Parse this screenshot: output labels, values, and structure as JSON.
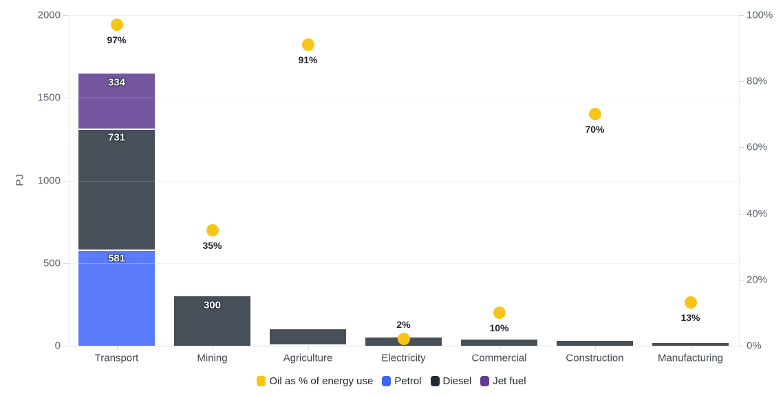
{
  "chart_data": {
    "type": "bar",
    "subtype": "stacked-bars-with-percent-dots",
    "title": "",
    "categories": [
      "Transport",
      "Mining",
      "Agriculture",
      "Electricity",
      "Commercial",
      "Construction",
      "Manufacturing"
    ],
    "bar_series": [
      {
        "name": "Petrol",
        "color": "#5b7cfa",
        "legend_color": "#3f63f9",
        "values": [
          581,
          0,
          8,
          0,
          0,
          0,
          0
        ]
      },
      {
        "name": "Diesel",
        "color": "#475059",
        "legend_color": "#1f2a36",
        "values": [
          731,
          300,
          92,
          50,
          38,
          30,
          17
        ]
      },
      {
        "name": "Jet fuel",
        "color": "#73569f",
        "legend_color": "#613a94",
        "values": [
          334,
          0,
          0,
          0,
          0,
          0,
          0
        ]
      }
    ],
    "dot_series": {
      "name": "Oil as % of energy use",
      "color": "#f7c51a",
      "legend_color": "#fac50f",
      "values": [
        97,
        35,
        91,
        2,
        10,
        70,
        13
      ],
      "suffix": "%"
    },
    "bar_value_labels": [
      581,
      731,
      334,
      300
    ],
    "bar_label_min": 300,
    "ylabel": "PJ",
    "ylim": [
      0,
      2000
    ],
    "yticks": [
      0,
      500,
      1000,
      1500,
      2000
    ],
    "y2lim": [
      0,
      100
    ],
    "y2ticks": [
      0,
      20,
      40,
      60,
      80,
      100
    ],
    "y2suffix": "%",
    "grid": "horizontal",
    "legend_position": "bottom-center",
    "legend": [
      "Oil as % of energy use",
      "Petrol",
      "Diesel",
      "Jet fuel"
    ]
  }
}
